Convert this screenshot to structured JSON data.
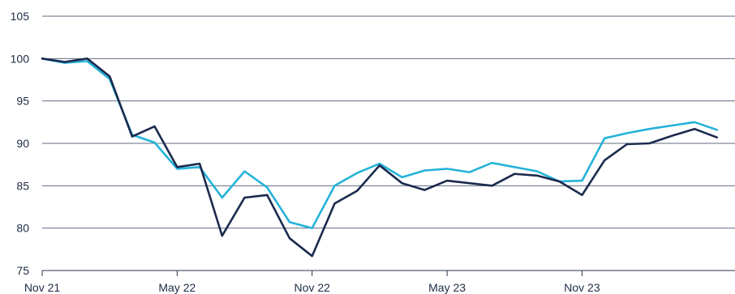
{
  "chart_data": {
    "type": "line",
    "title": "",
    "xlabel": "",
    "ylabel": "",
    "ylim": [
      75,
      105
    ],
    "yticks": [
      75,
      80,
      85,
      90,
      95,
      100,
      105
    ],
    "xticks": [
      "Nov 21",
      "May 22",
      "Nov 22",
      "May 23",
      "Nov 23"
    ],
    "grid": "horizontal",
    "legend": "none",
    "x": [
      "Nov 21",
      "Dec 21",
      "Jan 22",
      "Feb 22",
      "Mar 22",
      "Apr 22",
      "May 22",
      "Jun 22",
      "Jul 22",
      "Aug 22",
      "Sep 22",
      "Oct 22",
      "Nov 22",
      "Dec 22",
      "Jan 23",
      "Feb 23",
      "Mar 23",
      "Apr 23",
      "May 23",
      "Jun 23",
      "Jul 23",
      "Aug 23",
      "Sep 23",
      "Oct 23",
      "Nov 23",
      "Dec 23",
      "Jan 24",
      "Feb 24",
      "Mar 24",
      "Apr 24",
      "May 24"
    ],
    "series": [
      {
        "color": "#1b2a4e",
        "values": [
          100.0,
          99.6,
          100.0,
          97.9,
          90.8,
          92.0,
          87.2,
          87.6,
          79.1,
          83.6,
          83.9,
          78.8,
          76.7,
          82.9,
          84.4,
          87.4,
          85.3,
          84.5,
          85.6,
          85.3,
          85.0,
          86.4,
          86.2,
          85.5,
          83.9,
          88.0,
          89.9,
          90.0,
          90.9,
          91.7,
          90.7
        ]
      },
      {
        "color": "#25b3d8",
        "values": [
          100.0,
          99.5,
          99.7,
          97.6,
          91.0,
          90.1,
          87.0,
          87.2,
          83.6,
          86.7,
          84.8,
          80.7,
          80.0,
          85.0,
          86.5,
          87.6,
          86.0,
          86.8,
          87.0,
          86.6,
          87.7,
          87.2,
          86.7,
          85.5,
          85.6,
          90.6,
          91.2,
          91.7,
          92.1,
          92.5,
          91.6
        ]
      }
    ]
  }
}
